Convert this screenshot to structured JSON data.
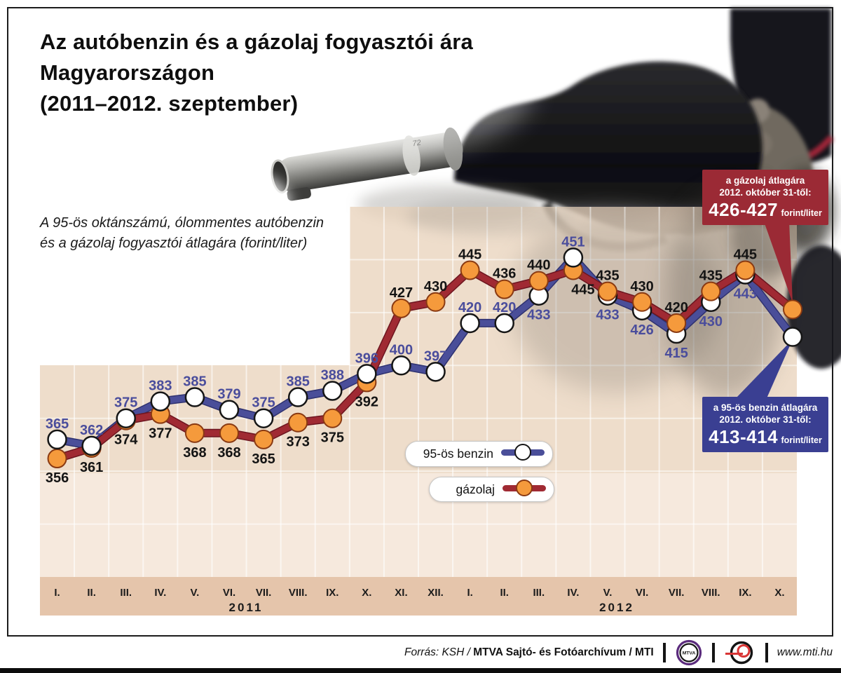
{
  "header": {
    "title_lines": [
      "Az autóbenzin és a gázolaj fogyasztói ára",
      "Magyarországon",
      "(2011–2012. szeptember)"
    ],
    "subtitle_lines": [
      "A 95-ös oktánszámú, ólommentes autóbenzin",
      "és a gázolaj fogyasztói átlagára (forint/liter)"
    ]
  },
  "chart_data": {
    "type": "line",
    "unit": "forint/liter",
    "year_groups": [
      {
        "label": "2011",
        "months": [
          "I.",
          "II.",
          "III.",
          "IV.",
          "V.",
          "VI.",
          "VII.",
          "VIII.",
          "IX.",
          "X.",
          "XI.",
          "XII."
        ]
      },
      {
        "label": "2012",
        "months": [
          "I.",
          "II.",
          "III.",
          "IV.",
          "V.",
          "VI.",
          "VII.",
          "VIII.",
          "IX.",
          "X."
        ]
      }
    ],
    "series": [
      {
        "name": "95-ös benzin",
        "color": "#4a4e99",
        "outline": "#2f3270",
        "marker": "#ffffff",
        "marker_stroke": "#161616",
        "label_color": "#4a4d9c",
        "values": [
          365,
          362,
          375,
          383,
          385,
          379,
          375,
          385,
          388,
          396,
          400,
          397,
          420,
          420,
          433,
          451,
          433,
          426,
          415,
          430,
          443
        ],
        "projected_value": 413.5
      },
      {
        "name": "gázolaj",
        "color": "#a02a33",
        "outline": "#6d1620",
        "marker": "#f59a3c",
        "marker_stroke": "#8a3a12",
        "label_color": "#141414",
        "values": [
          356,
          361,
          374,
          377,
          368,
          368,
          365,
          373,
          375,
          392,
          427,
          430,
          445,
          436,
          440,
          445,
          435,
          430,
          420,
          435,
          445
        ],
        "projected_value": 426.5
      }
    ],
    "ylim": [
      300,
      475
    ],
    "grid_step": 25,
    "grid": "on",
    "legend_position": "inside-center-right",
    "annotations": [
      {
        "id": "gazolaj-oct",
        "lines": [
          "a gázolaj átlagára",
          "2012. október 31-től:"
        ],
        "value": "426-427",
        "unit": "forint/liter",
        "bg": "#9b2a35"
      },
      {
        "id": "benzin-oct",
        "lines": [
          "a 95-ös benzin átlagára",
          "2012. október 31-től:"
        ],
        "value": "413-414",
        "unit": "forint/liter",
        "bg": "#3a3f92"
      }
    ]
  },
  "legend": {
    "items": [
      {
        "label": "95-ös benzin"
      },
      {
        "label": "gázolaj"
      }
    ]
  },
  "photo": {
    "marking": "72"
  },
  "footer": {
    "source_prefix": "Forrás: KSH / ",
    "source_bold": "MTVA Sajtó- és Fotóarchívum",
    "source_suffix": " / MTI",
    "mtva_logo_text": "MTVA",
    "url": "www.mti.hu"
  },
  "colors": {
    "panel_dark": "#e8d2ba",
    "panel_light": "#f3e2d2",
    "axis_strip": "#e5c5ab",
    "gridline": "#ffffff",
    "frame": "#1c1c1c",
    "month_label": "#1c1c1c"
  }
}
